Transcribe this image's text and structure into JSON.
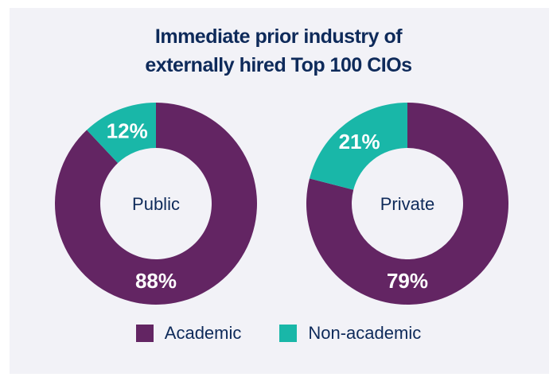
{
  "chart_data": {
    "type": "pie",
    "title": "Immediate prior industry of externally hired Top 100 CIOs",
    "title_lines": [
      "Immediate prior industry of",
      "externally hired Top 100 CIOs"
    ],
    "legend": [
      "Academic",
      "Non-academic"
    ],
    "colors": {
      "Academic": "#632563",
      "Non-academic": "#19b7a8"
    },
    "charts": [
      {
        "label": "Public",
        "slices": [
          {
            "name": "Academic",
            "value": 88,
            "label": "88%"
          },
          {
            "name": "Non-academic",
            "value": 12,
            "label": "12%"
          }
        ]
      },
      {
        "label": "Private",
        "slices": [
          {
            "name": "Academic",
            "value": 79,
            "label": "79%"
          },
          {
            "name": "Non-academic",
            "value": 21,
            "label": "21%"
          }
        ]
      }
    ]
  }
}
